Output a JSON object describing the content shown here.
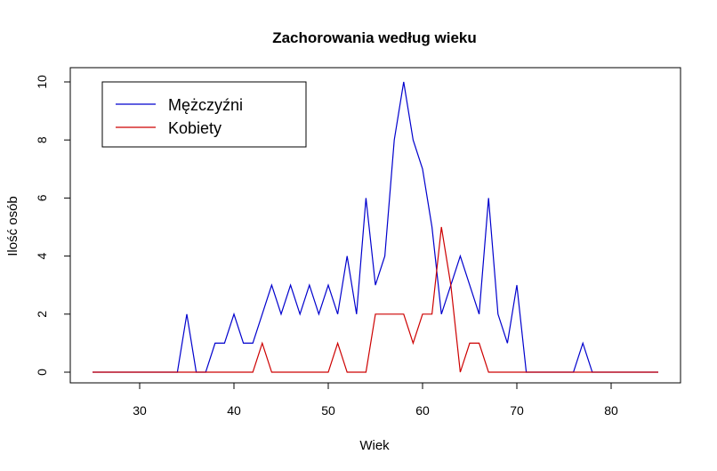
{
  "chart_data": {
    "type": "line",
    "title": "Zachorowania według wieku",
    "xlabel": "Wiek",
    "ylabel": "Ilość osób",
    "xlim": [
      25,
      85
    ],
    "ylim": [
      0,
      10
    ],
    "x_ticks": [
      30,
      40,
      50,
      60,
      70,
      80
    ],
    "y_ticks": [
      0,
      2,
      4,
      6,
      8,
      10
    ],
    "grid": false,
    "legend_position": "top-left",
    "x": [
      25,
      26,
      27,
      28,
      29,
      30,
      31,
      32,
      33,
      34,
      35,
      36,
      37,
      38,
      39,
      40,
      41,
      42,
      43,
      44,
      45,
      46,
      47,
      48,
      49,
      50,
      51,
      52,
      53,
      54,
      55,
      56,
      57,
      58,
      59,
      60,
      61,
      62,
      63,
      64,
      65,
      66,
      67,
      68,
      69,
      70,
      71,
      72,
      73,
      74,
      75,
      76,
      77,
      78,
      79,
      80,
      81,
      82,
      83,
      84,
      85
    ],
    "series": [
      {
        "name": "Mężczyźni",
        "color": "#0000CD",
        "values": [
          0,
          0,
          0,
          0,
          0,
          0,
          0,
          0,
          0,
          0,
          2,
          0,
          0,
          1,
          1,
          2,
          1,
          1,
          2,
          3,
          2,
          3,
          2,
          3,
          2,
          3,
          2,
          4,
          2,
          6,
          3,
          4,
          8,
          10,
          8,
          7,
          5,
          2,
          3,
          4,
          3,
          2,
          6,
          2,
          1,
          3,
          0,
          0,
          0,
          0,
          0,
          0,
          1,
          0,
          0,
          0,
          0,
          0,
          0,
          0,
          0
        ]
      },
      {
        "name": "Kobiety",
        "color": "#CD0000",
        "values": [
          0,
          0,
          0,
          0,
          0,
          0,
          0,
          0,
          0,
          0,
          0,
          0,
          0,
          0,
          0,
          0,
          0,
          0,
          1,
          0,
          0,
          0,
          0,
          0,
          0,
          0,
          1,
          0,
          0,
          0,
          2,
          2,
          2,
          2,
          1,
          2,
          2,
          5,
          3,
          0,
          1,
          1,
          0,
          0,
          0,
          0,
          0,
          0,
          0,
          0,
          0,
          0,
          0,
          0,
          0,
          0,
          0,
          0,
          0,
          0,
          0
        ]
      }
    ]
  }
}
